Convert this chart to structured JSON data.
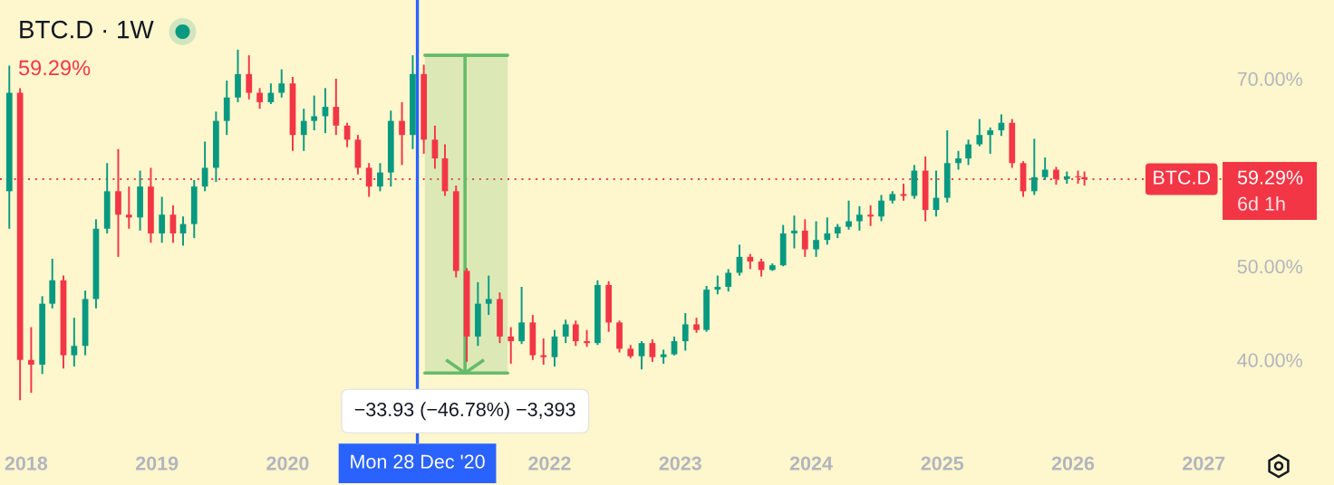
{
  "chart_data": {
    "type": "candlestick",
    "title": "BTC.D · 1W",
    "x": [
      "2017-11-15",
      "2017-12-15",
      "2018-01-15",
      "2018-02-15",
      "2018-03-15",
      "2018-04-15",
      "2018-05-15",
      "2018-06-15",
      "2018-07-15",
      "2018-08-15",
      "2018-09-15",
      "2018-10-15",
      "2018-11-15",
      "2018-12-15",
      "2019-01-15",
      "2019-02-15",
      "2019-03-15",
      "2019-04-15",
      "2019-05-15",
      "2019-06-15",
      "2019-07-15",
      "2019-08-15",
      "2019-09-15",
      "2019-10-15",
      "2019-11-15",
      "2019-12-15",
      "2020-01-15",
      "2020-02-15",
      "2020-03-15",
      "2020-04-15",
      "2020-05-15",
      "2020-06-15",
      "2020-07-15",
      "2020-08-15",
      "2020-09-15",
      "2020-10-15",
      "2020-11-15",
      "2020-12-15",
      "2021-01-15",
      "2021-02-15",
      "2021-03-15",
      "2021-04-15",
      "2021-05-15",
      "2021-06-15",
      "2021-07-15",
      "2021-08-15",
      "2021-09-15",
      "2021-10-15",
      "2021-11-15",
      "2021-12-15",
      "2022-01-15",
      "2022-02-15",
      "2022-03-15",
      "2022-04-15",
      "2022-05-15",
      "2022-06-15",
      "2022-07-15",
      "2022-08-15",
      "2022-09-15",
      "2022-10-15",
      "2022-11-15",
      "2022-12-15",
      "2023-01-15",
      "2023-02-15",
      "2023-03-15",
      "2023-04-15",
      "2023-05-15",
      "2023-06-15",
      "2023-07-15",
      "2023-08-15",
      "2023-09-15",
      "2023-10-15",
      "2023-11-15",
      "2023-12-15",
      "2024-01-15",
      "2024-02-15",
      "2024-03-15",
      "2024-04-15",
      "2024-05-15",
      "2024-06-15",
      "2024-07-15",
      "2024-08-15",
      "2024-09-15",
      "2024-10-15",
      "2024-11-15",
      "2024-12-15",
      "2025-01-15",
      "2025-02-15",
      "2025-03-15",
      "2025-04-15",
      "2025-05-15",
      "2025-06-15",
      "2025-07-15",
      "2025-08-15",
      "2025-09-15",
      "2025-10-15",
      "2025-11-15",
      "2025-12-15",
      "2026-01-15",
      "2026-02-02"
    ],
    "ohlc": [
      [
        58,
        71.4,
        54,
        68.5
      ],
      [
        68.5,
        69,
        35.7,
        40
      ],
      [
        40,
        43.5,
        36.5,
        39.5
      ],
      [
        39.5,
        46.8,
        38.5,
        46
      ],
      [
        46,
        50.8,
        45.5,
        48.5
      ],
      [
        48.5,
        49,
        39.1,
        40.5
      ],
      [
        40.5,
        44.5,
        39.3,
        41.5
      ],
      [
        41.5,
        47.4,
        40.5,
        46.5
      ],
      [
        46.5,
        55,
        45.5,
        54
      ],
      [
        54,
        61,
        53.5,
        58
      ],
      [
        58,
        62.5,
        51,
        55.5
      ],
      [
        55.5,
        58.5,
        54,
        55.2
      ],
      [
        55.2,
        60.2,
        53.8,
        58.5
      ],
      [
        58.5,
        60.5,
        52.5,
        53.5
      ],
      [
        53.5,
        57.4,
        52.5,
        55.5
      ],
      [
        55.5,
        56.5,
        52.5,
        53.5
      ],
      [
        53.5,
        55.3,
        52.2,
        54.5
      ],
      [
        54.5,
        59.2,
        53,
        58.5
      ],
      [
        58.5,
        63.3,
        58,
        60.5
      ],
      [
        60.5,
        66.5,
        59,
        65.5
      ],
      [
        65.5,
        69.8,
        64,
        68
      ],
      [
        68,
        73.1,
        67.5,
        70.5
      ],
      [
        70.5,
        72.5,
        67.8,
        68.5
      ],
      [
        68.5,
        69,
        66.8,
        67.5
      ],
      [
        67.5,
        69.5,
        67.3,
        68.5
      ],
      [
        68.5,
        71,
        68,
        69.5
      ],
      [
        69.5,
        70.2,
        62.3,
        64
      ],
      [
        64,
        66.8,
        62.3,
        65.5
      ],
      [
        65.5,
        68.2,
        64.5,
        66
      ],
      [
        66,
        69,
        64.2,
        67
      ],
      [
        67,
        70,
        64,
        65
      ],
      [
        65,
        65.3,
        62.7,
        63.5
      ],
      [
        63.5,
        64,
        59.8,
        60.5
      ],
      [
        60.5,
        61,
        57.4,
        58.5
      ],
      [
        58.5,
        61,
        58,
        60
      ],
      [
        60,
        66.6,
        58.5,
        65.5
      ],
      [
        65.5,
        67.5,
        60.8,
        64
      ],
      [
        64,
        72.5,
        62.5,
        70.5
      ],
      [
        70.5,
        71.5,
        62,
        63.5
      ],
      [
        63.5,
        65,
        60.4,
        61.5
      ],
      [
        61.5,
        63,
        57.5,
        58
      ],
      [
        58,
        58.6,
        48.8,
        49.5
      ],
      [
        49.5,
        49.8,
        39.8,
        42.5
      ],
      [
        42.5,
        48.3,
        41.5,
        46
      ],
      [
        46,
        49,
        44.8,
        46.5
      ],
      [
        46.5,
        47.2,
        41.8,
        42.5
      ],
      [
        42.5,
        43.5,
        39.6,
        42
      ],
      [
        42,
        47.8,
        41.7,
        44
      ],
      [
        44,
        44.8,
        40,
        40.5
      ],
      [
        40.5,
        42.3,
        39.5,
        40.3
      ],
      [
        40.3,
        43.2,
        39.3,
        42.5
      ],
      [
        42.5,
        44.3,
        41.8,
        43.8
      ],
      [
        43.8,
        44.2,
        41.5,
        42
      ],
      [
        42,
        43.2,
        41.4,
        41.8
      ],
      [
        41.8,
        48.5,
        41.6,
        48
      ],
      [
        48,
        48.4,
        43,
        44
      ],
      [
        44,
        44.2,
        40.8,
        41.2
      ],
      [
        41.2,
        41.6,
        40.2,
        40.4
      ],
      [
        40.4,
        42,
        39,
        41.8
      ],
      [
        41.8,
        42.2,
        39.8,
        40.3
      ],
      [
        40.3,
        41.1,
        39.6,
        40.6
      ],
      [
        40.6,
        42.5,
        40.5,
        42
      ],
      [
        42,
        45,
        41,
        43.8
      ],
      [
        43.8,
        44.5,
        42.9,
        43.2
      ],
      [
        43.2,
        47.9,
        43,
        47.5
      ],
      [
        47.5,
        49,
        47,
        47.8
      ],
      [
        47.8,
        49.7,
        47.3,
        49.3
      ],
      [
        49.3,
        52.3,
        49,
        51
      ],
      [
        51,
        51.3,
        49.7,
        50.5
      ],
      [
        50.5,
        50.8,
        48.9,
        49.6
      ],
      [
        49.6,
        50.3,
        49.5,
        50.1
      ],
      [
        50.1,
        54.4,
        50,
        53.5
      ],
      [
        53.5,
        55.4,
        51.9,
        53.8
      ],
      [
        53.8,
        55,
        51,
        51.8
      ],
      [
        51.8,
        54.8,
        51,
        52.8
      ],
      [
        52.8,
        55.2,
        52.3,
        53.5
      ],
      [
        53.5,
        54.5,
        53,
        54.2
      ],
      [
        54.2,
        57,
        53.9,
        54.8
      ],
      [
        54.8,
        56.4,
        53.8,
        55.5
      ],
      [
        55.5,
        56.5,
        54.3,
        55.3
      ],
      [
        55.3,
        57.6,
        54.8,
        57
      ],
      [
        57,
        58,
        56.7,
        57.7
      ],
      [
        57.7,
        58.8,
        57,
        57.5
      ],
      [
        57.5,
        60.8,
        57.2,
        60.2
      ],
      [
        60.2,
        61.7,
        54.8,
        56
      ],
      [
        56,
        60.2,
        55.3,
        57.3
      ],
      [
        57.3,
        64.5,
        56.8,
        61
      ],
      [
        61,
        62.3,
        60.3,
        61.5
      ],
      [
        61.5,
        63.5,
        60.8,
        63
      ],
      [
        63,
        65.7,
        62.8,
        64
      ],
      [
        64,
        64.8,
        62,
        64.5
      ],
      [
        64.5,
        66.2,
        63.9,
        65.3
      ],
      [
        65.3,
        65.7,
        60.5,
        61
      ],
      [
        61,
        61.2,
        57.4,
        58
      ],
      [
        58,
        63.6,
        57.6,
        59.5
      ],
      [
        59.5,
        61.6,
        59.2,
        60.3
      ],
      [
        60.3,
        60.6,
        58.7,
        59.3
      ],
      [
        59.3,
        60.1,
        58.8,
        59.6
      ],
      [
        59.6,
        60.2,
        58.8,
        59.5
      ],
      [
        59.5,
        60.1,
        58.6,
        59.29
      ]
    ],
    "colors": [
      "#089981",
      "#f23645",
      "#f23645",
      "#089981",
      "#089981",
      "#f23645",
      "#089981",
      "#089981",
      "#089981",
      "#089981",
      "#f23645",
      "#f23645",
      "#089981",
      "#f23645",
      "#089981",
      "#f23645",
      "#089981",
      "#089981",
      "#089981",
      "#089981",
      "#089981",
      "#089981",
      "#f23645",
      "#f23645",
      "#089981",
      "#089981",
      "#f23645",
      "#089981",
      "#089981",
      "#089981",
      "#f23645",
      "#f23645",
      "#f23645",
      "#f23645",
      "#089981",
      "#089981",
      "#f23645",
      "#089981",
      "#f23645",
      "#f23645",
      "#f23645",
      "#f23645",
      "#f23645",
      "#089981",
      "#089981",
      "#f23645",
      "#f23645",
      "#089981",
      "#f23645",
      "#f23645",
      "#089981",
      "#089981",
      "#f23645",
      "#f23645",
      "#089981",
      "#f23645",
      "#f23645",
      "#f23645",
      "#089981",
      "#f23645",
      "#089981",
      "#089981",
      "#089981",
      "#f23645",
      "#089981",
      "#089981",
      "#089981",
      "#089981",
      "#f23645",
      "#f23645",
      "#089981",
      "#089981",
      "#089981",
      "#f23645",
      "#089981",
      "#089981",
      "#089981",
      "#089981",
      "#089981",
      "#f23645",
      "#089981",
      "#089981",
      "#f23645",
      "#089981",
      "#f23645",
      "#089981",
      "#089981",
      "#089981",
      "#089981",
      "#089981",
      "#089981",
      "#089981",
      "#f23645",
      "#f23645",
      "#089981",
      "#089981",
      "#f23645",
      "#089981",
      "#f23645",
      "#f23645"
    ],
    "series": [
      {
        "type": "line",
        "x": [
          "2021-01-18",
          "2021-09-06"
        ],
        "values": [
          38.6,
          38.6
        ],
        "lower": [
          38.6,
          38.6
        ],
        "upper": [
          72.5,
          72.5
        ],
        "color": "#66bb6a"
      },
      {
        "type": "line",
        "x": [
          "2021-01-18",
          "2021-09-06"
        ],
        "values": [
          72.5,
          72.5
        ],
        "color": "#66bb6a"
      },
      {
        "type": "line",
        "x": [
          "2021-05-10",
          "2021-05-10"
        ],
        "values": [
          72.5,
          38.6
        ],
        "color": "#66bb6a"
      }
    ],
    "xlim": [
      "2017-10-20",
      "2027-02-20"
    ],
    "xticks": [
      "2018",
      "2019",
      "2020",
      "2022",
      "2023",
      "2024",
      "2025",
      "2026",
      "2027"
    ],
    "ylim": [
      31.1,
      78.4
    ],
    "yticks": [
      {
        "value": 40,
        "label": "40.00%"
      },
      {
        "value": 50,
        "label": "50.00%"
      },
      {
        "value": 70,
        "label": "70.00%"
      }
    ],
    "ref_lines": [
      {
        "axis": "y",
        "value": 59.29,
        "label": "BTC.D",
        "color": "#f23645",
        "line_style": "dotted"
      },
      {
        "axis": "x",
        "value": "2020-12-28",
        "label": "Mon 28 Dec '20",
        "color": "#2962ff",
        "line_style": "solid"
      }
    ],
    "annotations": [
      "59.29%",
      "59.29%",
      "6d 1h",
      {
        "text": "−33.93 (−46.78%) −3,393",
        "x": "2021-05-10",
        "y": 38.6
      }
    ]
  }
}
